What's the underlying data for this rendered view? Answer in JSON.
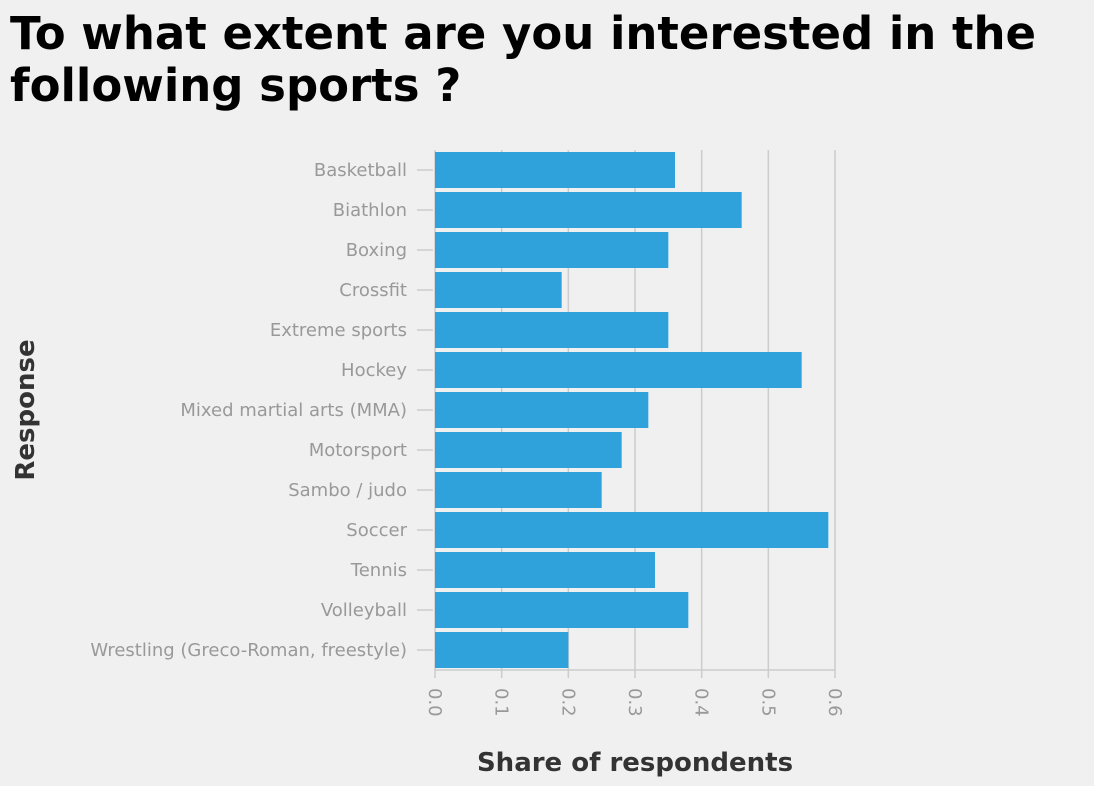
{
  "chart_data": {
    "type": "bar",
    "orientation": "horizontal",
    "title": "To what extent are you interested in the following sports ?",
    "xlabel": "Share of respondents",
    "ylabel": "Response",
    "categories": [
      "Basketball",
      "Biathlon",
      "Boxing",
      "Crossfit",
      "Extreme sports",
      "Hockey",
      "Mixed martial arts (MMA)",
      "Motorsport",
      "Sambo / judo",
      "Soccer",
      "Tennis",
      "Volleyball",
      "Wrestling (Greco-Roman, freestyle)"
    ],
    "values": [
      0.36,
      0.46,
      0.35,
      0.19,
      0.35,
      0.55,
      0.32,
      0.28,
      0.25,
      0.59,
      0.33,
      0.38,
      0.2
    ],
    "xlim": [
      0,
      0.6
    ],
    "xticks": [
      "0.0",
      "0.1",
      "0.2",
      "0.3",
      "0.4",
      "0.5",
      "0.6"
    ],
    "grid": "vertical",
    "bar_color": "#2fa1db",
    "grid_color": "#cccccc",
    "legend": "none"
  }
}
